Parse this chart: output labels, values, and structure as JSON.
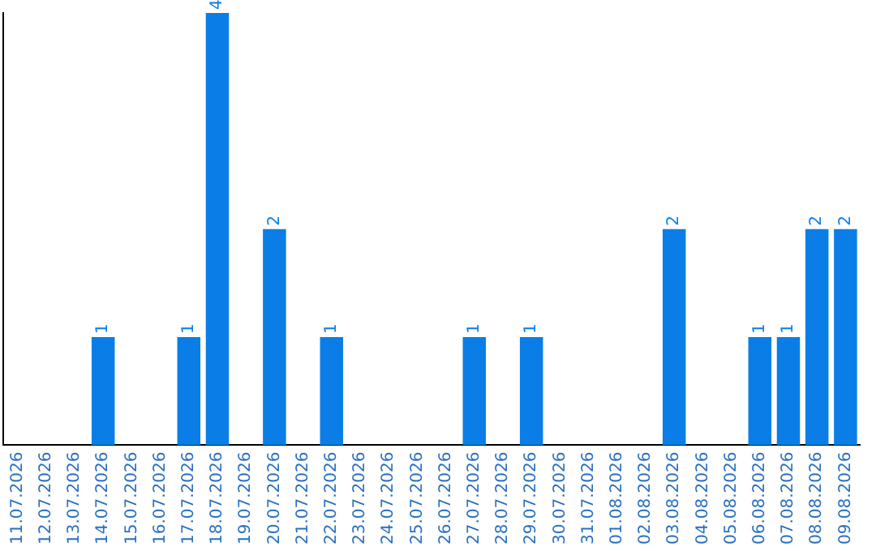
{
  "chart_data": {
    "type": "bar",
    "categories": [
      "11.07.2026",
      "12.07.2026",
      "13.07.2026",
      "14.07.2026",
      "15.07.2026",
      "16.07.2026",
      "17.07.2026",
      "18.07.2026",
      "19.07.2026",
      "20.07.2026",
      "21.07.2026",
      "22.07.2026",
      "23.07.2026",
      "24.07.2026",
      "25.07.2026",
      "26.07.2026",
      "27.07.2026",
      "28.07.2026",
      "29.07.2026",
      "30.07.2026",
      "31.07.2026",
      "01.08.2026",
      "02.08.2026",
      "03.08.2026",
      "04.08.2026",
      "05.08.2026",
      "06.08.2026",
      "07.08.2026",
      "08.08.2026",
      "09.08.2026"
    ],
    "values": [
      0,
      0,
      0,
      1,
      0,
      0,
      1,
      4,
      0,
      2,
      0,
      1,
      0,
      0,
      0,
      0,
      1,
      0,
      1,
      0,
      0,
      0,
      0,
      2,
      0,
      0,
      1,
      1,
      2,
      2
    ],
    "value_labels": [
      null,
      null,
      null,
      "1",
      null,
      null,
      "1",
      "4",
      null,
      "2",
      null,
      "1",
      null,
      null,
      null,
      null,
      "1",
      null,
      "1",
      null,
      null,
      null,
      null,
      "2",
      null,
      null,
      "1",
      "1",
      "2",
      "2"
    ],
    "color": "#0a7ee6",
    "tick_labels": "x",
    "grid": false,
    "legend": false
  }
}
